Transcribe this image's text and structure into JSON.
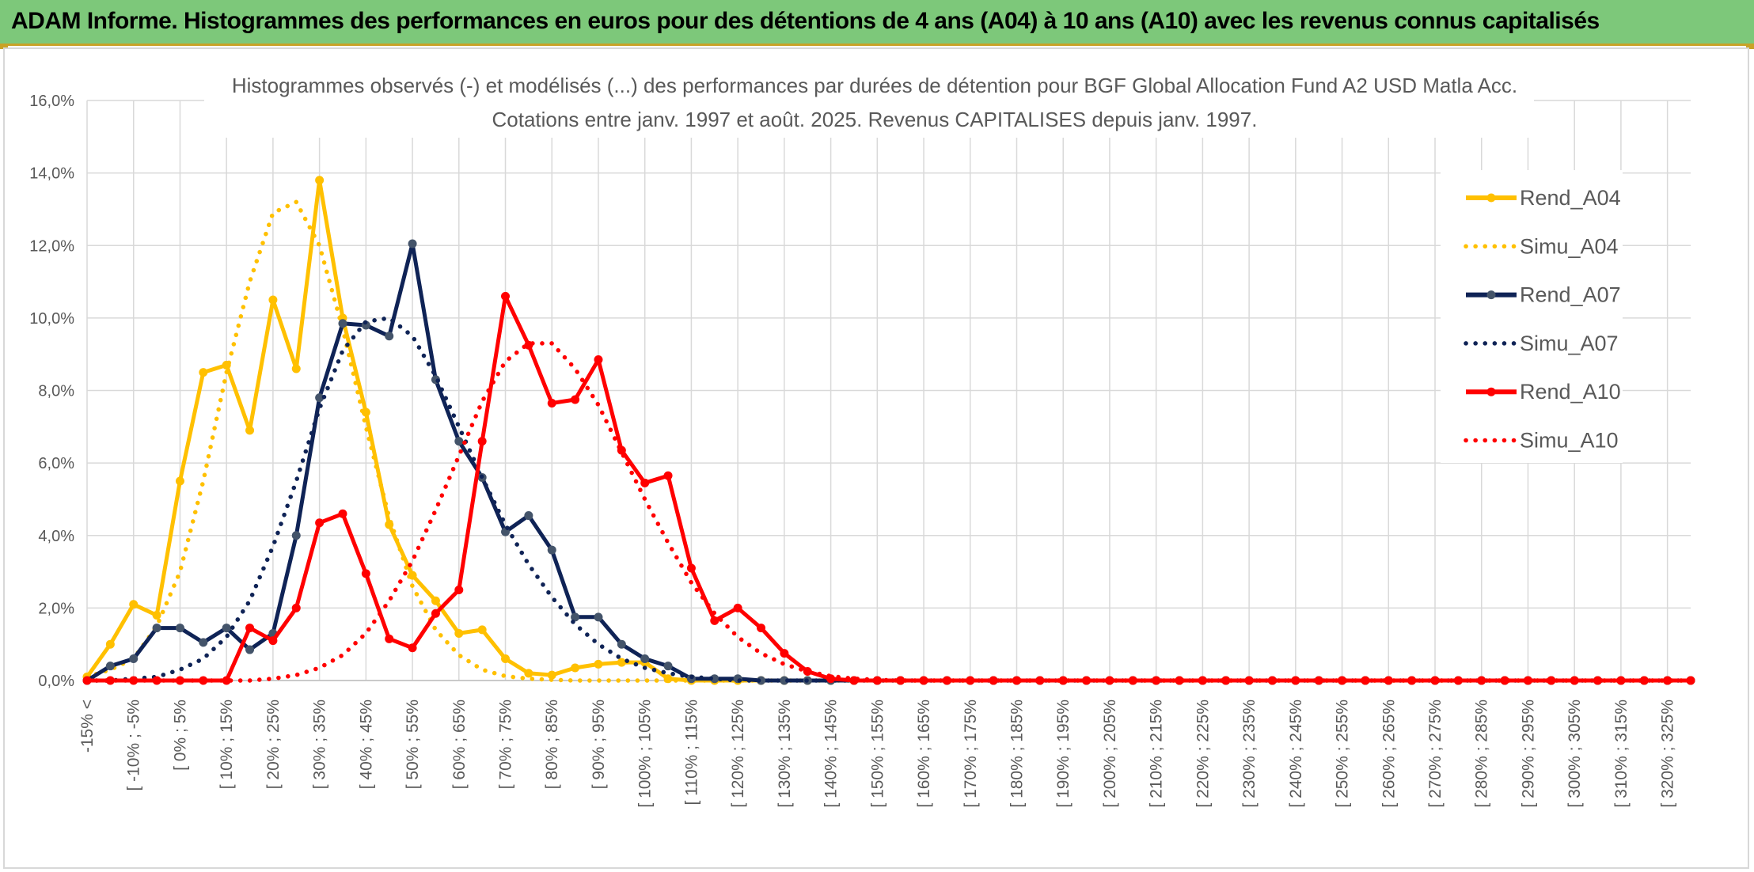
{
  "banner": {
    "title": "ADAM Informe. Histogrammes des performances en euros pour des détentions de 4 ans (A04) à 10 ans (A10) avec les revenus connus capitalisés"
  },
  "chart_data": {
    "type": "line",
    "title": "Histogrammes observés (-) et modélisés (...) des performances par durées de détention pour BGF Global Allocation Fund A2 USD Matla Acc.",
    "subtitle": "Cotations entre janv. 1997 et août. 2025. Revenus CAPITALISES depuis janv. 1997.",
    "ylim": [
      0,
      16
    ],
    "y_ticks": [
      "0,0%",
      "2,0%",
      "4,0%",
      "6,0%",
      "8,0%",
      "10,0%",
      "12,0%",
      "14,0%",
      "16,0%"
    ],
    "grid": true,
    "legend_position": "right",
    "categories": [
      "-15% <",
      "[ -15% ; -10%",
      "[ -10% ; -5%",
      "[ -5% ; 0%",
      "[ 0% ; 5%",
      "[ 5% ; 10%",
      "[ 10% ; 15%",
      "[ 15% ; 20%",
      "[ 20% ; 25%",
      "[ 25% ; 30%",
      "[ 30% ; 35%",
      "[ 35% ; 40%",
      "[ 40% ; 45%",
      "[ 45% ; 50%",
      "[ 50% ; 55%",
      "[ 55% ; 60%",
      "[ 60% ; 65%",
      "[ 65% ; 70%",
      "[ 70% ; 75%",
      "[ 75% ; 80%",
      "[ 80% ; 85%",
      "[ 85% ; 90%",
      "[ 90% ; 95%",
      "[ 95% ; 100%",
      "[ 100% ; 105%",
      "[ 105% ; 110%",
      "[ 110% ; 115%",
      "[ 115% ; 120%",
      "[ 120% ; 125%",
      "[ 125% ; 130%",
      "[ 130% ; 135%",
      "[ 135% ; 140%",
      "[ 140% ; 145%",
      "[ 145% ; 150%",
      "[ 150% ; 155%",
      "[ 155% ; 160%",
      "[ 160% ; 165%",
      "[ 165% ; 170%",
      "[ 170% ; 175%",
      "[ 175% ; 180%",
      "[ 180% ; 185%",
      "[ 185% ; 190%",
      "[ 190% ; 195%",
      "[ 195% ; 200%",
      "[ 200% ; 205%",
      "[ 205% ; 210%",
      "[ 210% ; 215%",
      "[ 215% ; 220%",
      "[ 220% ; 225%",
      "[ 225% ; 230%",
      "[ 230% ; 235%",
      "[ 235% ; 240%",
      "[ 240% ; 245%",
      "[ 245% ; 250%",
      "[ 250% ; 255%",
      "[ 255% ; 260%",
      "[ 260% ; 265%",
      "[ 265% ; 270%",
      "[ 270% ; 275%",
      "[ 275% ; 280%",
      "[ 280% ; 285%",
      "[ 285% ; 290%",
      "[ 290% ; 295%",
      "[ 295% ; 300%",
      "[ 300% ; 305%",
      "[ 305% ; 310%",
      "[ 310% ; 315%",
      "[ 315% ; 320%",
      "[ 320% ; 325%",
      "[ 325% ; 330%"
    ],
    "category_labels_shown": [
      "-15% <",
      "[ -10% ; -5%",
      "[ 0% ; 5%",
      "[ 10% ; 15%",
      "[ 20% ; 25%",
      "[ 30% ; 35%",
      "[ 40% ; 45%",
      "[ 50% ; 55%",
      "[ 60% ; 65%",
      "[ 70% ; 75%",
      "[ 80% ; 85%",
      "[ 90% ; 95%",
      "[ 100% ; 105%",
      "[ 110% ; 115%",
      "[ 120% ; 125%",
      "[ 130% ; 135%",
      "[ 140% ; 145%",
      "[ 150% ; 155%",
      "[ 160% ; 165%",
      "[ 170% ; 175%",
      "[ 180% ; 185%",
      "[ 190% ; 195%",
      "[ 200% ; 205%",
      "[ 210% ; 215%",
      "[ 220% ; 225%",
      "[ 230% ; 235%",
      "[ 240% ; 245%",
      "[ 250% ; 255%",
      "[ 260% ; 265%",
      "[ 270% ; 275%",
      "[ 280% ; 285%",
      "[ 290% ; 295%",
      "[ 300% ; 305%",
      "[ 310% ; 315%",
      "[ 320% ; 325%"
    ],
    "series": [
      {
        "name": "Rend_A04",
        "style": "solid",
        "color": "#ffc000",
        "values": [
          0.1,
          1.0,
          2.1,
          1.8,
          5.5,
          8.5,
          8.7,
          6.9,
          10.5,
          8.6,
          13.8,
          10.0,
          7.4,
          4.3,
          2.9,
          2.2,
          1.3,
          1.4,
          0.6,
          0.2,
          0.15,
          0.35,
          0.45,
          0.5,
          0.5,
          0.05,
          0.0,
          0.0,
          0.0,
          0.0,
          0.0,
          0.0,
          0.0,
          0.0,
          0.0,
          0.0,
          0.0,
          0.0,
          0.0,
          0.0,
          0.0,
          0.0,
          0.0,
          0.0,
          0.0,
          0.0,
          0.0,
          0.0,
          0.0,
          0.0,
          0.0,
          0.0,
          0.0,
          0.0,
          0.0,
          0.0,
          0.0,
          0.0,
          0.0,
          0.0,
          0.0,
          0.0,
          0.0,
          0.0,
          0.0,
          0.0,
          0.0,
          0.0,
          0.0,
          0.0
        ]
      },
      {
        "name": "Simu_A04",
        "style": "dotted",
        "color": "#ffc000",
        "values": [
          0.1,
          0.3,
          0.6,
          1.5,
          3.0,
          5.5,
          8.5,
          11.0,
          12.9,
          13.2,
          12.0,
          9.7,
          7.0,
          4.5,
          2.6,
          1.4,
          0.7,
          0.3,
          0.12,
          0.05,
          0.02,
          0.0,
          0.0,
          0.0,
          0.0,
          0.0,
          0.0,
          0.0,
          0.0,
          0.0,
          0.0,
          0.0,
          0.0,
          0.0,
          0.0,
          0.0,
          0.0,
          0.0,
          0.0,
          0.0,
          0.0,
          0.0,
          0.0,
          0.0,
          0.0,
          0.0,
          0.0,
          0.0,
          0.0,
          0.0,
          0.0,
          0.0,
          0.0,
          0.0,
          0.0,
          0.0,
          0.0,
          0.0,
          0.0,
          0.0,
          0.0,
          0.0,
          0.0,
          0.0,
          0.0,
          0.0,
          0.0,
          0.0,
          0.0,
          0.0
        ]
      },
      {
        "name": "Rend_A07",
        "style": "solid",
        "color": "#0f2356",
        "values": [
          0.0,
          0.4,
          0.6,
          1.45,
          1.45,
          1.05,
          1.45,
          0.85,
          1.3,
          4.0,
          7.8,
          9.85,
          9.8,
          9.5,
          12.05,
          8.3,
          6.6,
          5.6,
          4.1,
          4.55,
          3.6,
          1.75,
          1.75,
          1.0,
          0.6,
          0.4,
          0.05,
          0.05,
          0.05,
          0.0,
          0.0,
          0.0,
          0.0,
          0.0,
          0.0,
          0.0,
          0.0,
          0.0,
          0.0,
          0.0,
          0.0,
          0.0,
          0.0,
          0.0,
          0.0,
          0.0,
          0.0,
          0.0,
          0.0,
          0.0,
          0.0,
          0.0,
          0.0,
          0.0,
          0.0,
          0.0,
          0.0,
          0.0,
          0.0,
          0.0,
          0.0,
          0.0,
          0.0,
          0.0,
          0.0,
          0.0,
          0.0,
          0.0,
          0.0,
          0.0
        ]
      },
      {
        "name": "Simu_A07",
        "style": "dotted",
        "color": "#0f2356",
        "values": [
          0.0,
          0.0,
          0.05,
          0.1,
          0.3,
          0.6,
          1.2,
          2.2,
          3.7,
          5.5,
          7.5,
          9.1,
          9.9,
          10.0,
          9.5,
          8.4,
          7.0,
          5.6,
          4.3,
          3.2,
          2.3,
          1.55,
          1.0,
          0.6,
          0.35,
          0.2,
          0.1,
          0.05,
          0.0,
          0.0,
          0.0,
          0.0,
          0.0,
          0.0,
          0.0,
          0.0,
          0.0,
          0.0,
          0.0,
          0.0,
          0.0,
          0.0,
          0.0,
          0.0,
          0.0,
          0.0,
          0.0,
          0.0,
          0.0,
          0.0,
          0.0,
          0.0,
          0.0,
          0.0,
          0.0,
          0.0,
          0.0,
          0.0,
          0.0,
          0.0,
          0.0,
          0.0,
          0.0,
          0.0,
          0.0,
          0.0,
          0.0,
          0.0,
          0.0,
          0.0
        ]
      },
      {
        "name": "Rend_A10",
        "style": "solid",
        "color": "#ff0000",
        "values": [
          0.0,
          0.0,
          0.0,
          0.0,
          0.0,
          0.0,
          0.0,
          1.45,
          1.1,
          2.0,
          4.35,
          4.6,
          2.95,
          1.15,
          0.9,
          1.85,
          2.5,
          6.6,
          10.6,
          9.25,
          7.65,
          7.75,
          8.85,
          6.35,
          5.45,
          5.65,
          3.1,
          1.65,
          2.0,
          1.45,
          0.75,
          0.25,
          0.05,
          0.0,
          0.0,
          0.0,
          0.0,
          0.0,
          0.0,
          0.0,
          0.0,
          0.0,
          0.0,
          0.0,
          0.0,
          0.0,
          0.0,
          0.0,
          0.0,
          0.0,
          0.0,
          0.0,
          0.0,
          0.0,
          0.0,
          0.0,
          0.0,
          0.0,
          0.0,
          0.0,
          0.0,
          0.0,
          0.0,
          0.0,
          0.0,
          0.0,
          0.0,
          0.0,
          0.0,
          0.0
        ]
      },
      {
        "name": "Simu_A10",
        "style": "dotted",
        "color": "#ff0000",
        "values": [
          0.0,
          0.0,
          0.0,
          0.0,
          0.0,
          0.0,
          0.0,
          0.0,
          0.05,
          0.15,
          0.35,
          0.7,
          1.3,
          2.2,
          3.3,
          4.7,
          6.2,
          7.7,
          8.8,
          9.3,
          9.3,
          8.6,
          7.6,
          6.3,
          5.0,
          3.8,
          2.7,
          1.85,
          1.2,
          0.75,
          0.45,
          0.25,
          0.12,
          0.05,
          0.02,
          0.0,
          0.0,
          0.0,
          0.0,
          0.0,
          0.0,
          0.0,
          0.0,
          0.0,
          0.0,
          0.0,
          0.0,
          0.0,
          0.0,
          0.0,
          0.0,
          0.0,
          0.0,
          0.0,
          0.0,
          0.0,
          0.0,
          0.0,
          0.0,
          0.0,
          0.0,
          0.0,
          0.0,
          0.0,
          0.0,
          0.0,
          0.0,
          0.0,
          0.0,
          0.0
        ]
      }
    ]
  }
}
